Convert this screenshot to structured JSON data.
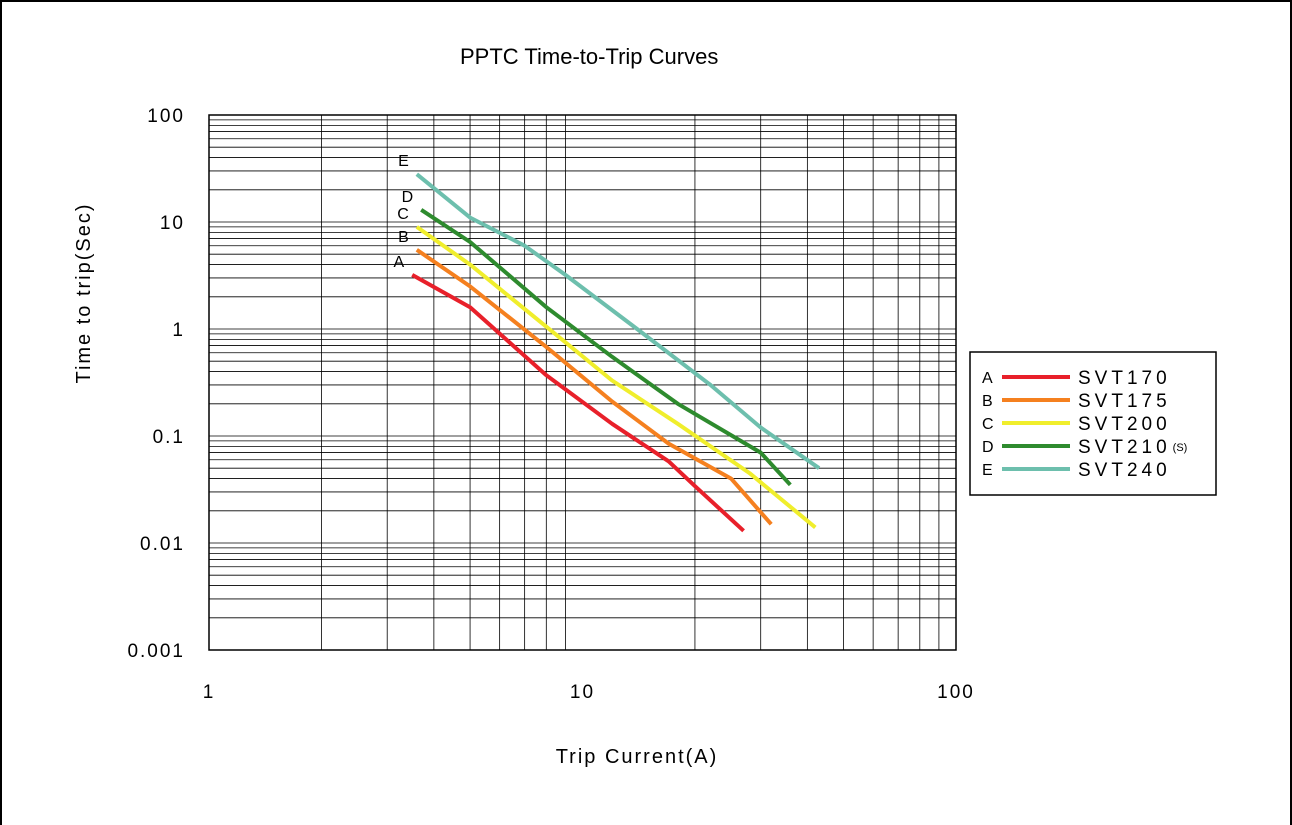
{
  "chart_data": {
    "type": "line",
    "title": "PPTC Time-to-Trip Curves",
    "xlabel": "Trip Current(A)",
    "ylabel": "Time to trip(Sec)",
    "xscale": "log",
    "yscale": "log",
    "xlim": [
      1,
      100
    ],
    "ylim": [
      0.001,
      100
    ],
    "xticks": [
      "1",
      "10",
      "100"
    ],
    "yticks": [
      "0.001",
      "0.01",
      "0.1",
      "1",
      "10",
      "100"
    ],
    "grid": true,
    "legend_position": "right",
    "series": [
      {
        "key": "A",
        "name": "SVT170",
        "color": "#e8202a",
        "x": [
          3.5,
          5,
          8,
          12,
          17,
          20,
          27
        ],
        "y": [
          3.2,
          1.6,
          0.37,
          0.13,
          0.058,
          0.034,
          0.013
        ]
      },
      {
        "key": "B",
        "name": "SVT175",
        "color": "#f5801f",
        "x": [
          3.6,
          5,
          8,
          12,
          17,
          25,
          32
        ],
        "y": [
          5.5,
          2.5,
          0.68,
          0.21,
          0.085,
          0.04,
          0.015
        ]
      },
      {
        "key": "C",
        "name": "SVT200",
        "color": "#f0ee2c",
        "x": [
          3.6,
          5,
          8,
          12,
          18,
          28,
          42
        ],
        "y": [
          9.0,
          4.0,
          1.05,
          0.33,
          0.13,
          0.045,
          0.014
        ]
      },
      {
        "key": "D",
        "name": "SVT210",
        "name_suffix": "(S)",
        "color": "#2e8b2e",
        "x": [
          3.7,
          5,
          8,
          12,
          18,
          30,
          36
        ],
        "y": [
          13,
          6.5,
          1.6,
          0.55,
          0.2,
          0.07,
          0.035
        ]
      },
      {
        "key": "E",
        "name": "SVT240",
        "color": "#6dbfad",
        "x": [
          3.6,
          5,
          7,
          9,
          14,
          22,
          30,
          43
        ],
        "y": [
          28,
          11,
          6.0,
          3.2,
          1.0,
          0.3,
          0.12,
          0.05
        ]
      }
    ]
  }
}
